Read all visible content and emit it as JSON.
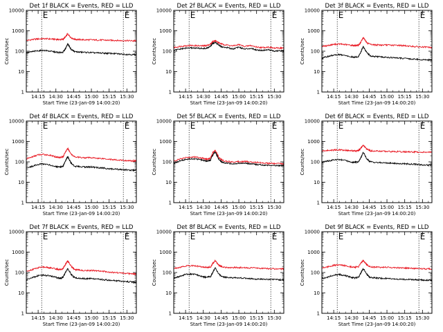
{
  "colors": {
    "events": "#000000",
    "lld": "#e8141e",
    "background": "#ffffff",
    "axes": "#000000"
  },
  "shared": {
    "xlabel": "Start Time (23-Jan-09 14:00:20)",
    "ylabel": "Counts/sec",
    "x_tick_labels": [
      "14:15",
      "14:30",
      "14:45",
      "15:00",
      "15:15",
      "15:30"
    ],
    "y_tick_labels": [
      "1",
      "10",
      "100",
      "1000",
      "10000"
    ],
    "marker_label": "E"
  },
  "chart_data": [
    {
      "type": "line",
      "title": "Det 1f BLACK = Events, RED = LLD",
      "xlim": [
        "14:05",
        "15:38"
      ],
      "ylim": [
        1,
        10000
      ],
      "y_scale": "log",
      "x": [
        "14:05",
        "14:10",
        "14:15",
        "14:20",
        "14:25",
        "14:30",
        "14:33",
        "14:36",
        "14:38",
        "14:40",
        "14:43",
        "14:46",
        "14:50",
        "14:55",
        "15:00",
        "15:05",
        "15:10",
        "15:15",
        "15:20",
        "15:25",
        "15:30",
        "15:35",
        "15:38"
      ],
      "series": [
        {
          "name": "LLD",
          "values": [
            330,
            370,
            400,
            410,
            400,
            380,
            370,
            380,
            480,
            700,
            450,
            380,
            370,
            360,
            360,
            350,
            350,
            340,
            340,
            330,
            330,
            320,
            320
          ]
        },
        {
          "name": "Events",
          "values": [
            80,
            95,
            105,
            110,
            100,
            90,
            85,
            90,
            130,
            230,
            120,
            95,
            90,
            88,
            85,
            82,
            80,
            78,
            76,
            72,
            70,
            68,
            68
          ]
        }
      ]
    },
    {
      "type": "line",
      "title": "Det 2f BLACK = Events, RED = LLD",
      "xlim": [
        "14:05",
        "15:38"
      ],
      "ylim": [
        1,
        10000
      ],
      "y_scale": "log",
      "x": [
        "14:05",
        "14:10",
        "14:15",
        "14:20",
        "14:25",
        "14:30",
        "14:33",
        "14:36",
        "14:38",
        "14:40",
        "14:43",
        "14:46",
        "14:50",
        "14:55",
        "15:00",
        "15:05",
        "15:10",
        "15:15",
        "15:20",
        "15:25",
        "15:30",
        "15:35",
        "15:38"
      ],
      "series": [
        {
          "name": "LLD",
          "values": [
            150,
            170,
            185,
            190,
            185,
            180,
            190,
            220,
            300,
            330,
            260,
            220,
            200,
            180,
            210,
            170,
            190,
            160,
            150,
            160,
            140,
            145,
            140
          ]
        },
        {
          "name": "Events",
          "values": [
            110,
            125,
            140,
            145,
            140,
            135,
            140,
            170,
            240,
            280,
            200,
            160,
            150,
            130,
            160,
            125,
            140,
            115,
            110,
            120,
            100,
            105,
            100
          ]
        }
      ]
    },
    {
      "type": "line",
      "title": "Det 3f BLACK = Events, RED = LLD",
      "xlim": [
        "14:05",
        "15:38"
      ],
      "ylim": [
        1,
        10000
      ],
      "y_scale": "log",
      "x": [
        "14:05",
        "14:10",
        "14:15",
        "14:20",
        "14:25",
        "14:30",
        "14:33",
        "14:36",
        "14:38",
        "14:40",
        "14:43",
        "14:46",
        "14:50",
        "14:55",
        "15:00",
        "15:05",
        "15:10",
        "15:15",
        "15:20",
        "15:25",
        "15:30",
        "15:35",
        "15:38"
      ],
      "series": [
        {
          "name": "LLD",
          "values": [
            170,
            190,
            215,
            225,
            210,
            195,
            190,
            195,
            280,
            480,
            260,
            210,
            205,
            200,
            200,
            195,
            195,
            185,
            175,
            165,
            160,
            155,
            150
          ]
        },
        {
          "name": "Events",
          "values": [
            45,
            55,
            65,
            68,
            60,
            52,
            50,
            55,
            95,
            170,
            85,
            58,
            55,
            52,
            50,
            48,
            46,
            44,
            42,
            40,
            38,
            37,
            36
          ]
        }
      ]
    },
    {
      "type": "line",
      "title": "Det 4f BLACK = Events, RED = LLD",
      "xlim": [
        "14:05",
        "15:38"
      ],
      "ylim": [
        1,
        10000
      ],
      "y_scale": "log",
      "x": [
        "14:05",
        "14:10",
        "14:15",
        "14:20",
        "14:25",
        "14:30",
        "14:33",
        "14:36",
        "14:38",
        "14:40",
        "14:43",
        "14:46",
        "14:50",
        "14:55",
        "15:00",
        "15:05",
        "15:10",
        "15:15",
        "15:20",
        "15:25",
        "15:30",
        "15:35",
        "15:38"
      ],
      "series": [
        {
          "name": "LLD",
          "values": [
            140,
            175,
            220,
            230,
            210,
            175,
            165,
            175,
            300,
            450,
            240,
            175,
            165,
            160,
            160,
            150,
            145,
            135,
            125,
            120,
            115,
            110,
            115
          ]
        },
        {
          "name": "Events",
          "values": [
            50,
            60,
            75,
            80,
            70,
            58,
            54,
            58,
            110,
            180,
            85,
            60,
            58,
            56,
            56,
            52,
            50,
            46,
            44,
            42,
            40,
            38,
            42
          ]
        }
      ]
    },
    {
      "type": "line",
      "title": "Det 5f BLACK = Events, RED = LLD",
      "xlim": [
        "14:05",
        "15:38"
      ],
      "ylim": [
        1,
        10000
      ],
      "y_scale": "log",
      "x": [
        "14:05",
        "14:10",
        "14:15",
        "14:20",
        "14:25",
        "14:30",
        "14:33",
        "14:36",
        "14:38",
        "14:40",
        "14:43",
        "14:46",
        "14:50",
        "14:55",
        "15:00",
        "15:05",
        "15:10",
        "15:15",
        "15:20",
        "15:25",
        "15:30",
        "15:35",
        "15:38"
      ],
      "series": [
        {
          "name": "LLD",
          "values": [
            110,
            135,
            160,
            175,
            170,
            150,
            135,
            150,
            280,
            380,
            170,
            120,
            105,
            100,
            105,
            105,
            100,
            95,
            90,
            85,
            82,
            82,
            80
          ]
        },
        {
          "name": "Events",
          "values": [
            85,
            110,
            130,
            140,
            135,
            120,
            110,
            120,
            220,
            310,
            135,
            95,
            85,
            80,
            85,
            85,
            80,
            75,
            70,
            68,
            66,
            66,
            65
          ]
        }
      ]
    },
    {
      "type": "line",
      "title": "Det 6f BLACK = Events, RED = LLD",
      "xlim": [
        "14:05",
        "15:38"
      ],
      "ylim": [
        1,
        10000
      ],
      "y_scale": "log",
      "x": [
        "14:05",
        "14:10",
        "14:15",
        "14:20",
        "14:25",
        "14:30",
        "14:33",
        "14:36",
        "14:38",
        "14:40",
        "14:43",
        "14:46",
        "14:50",
        "14:55",
        "15:00",
        "15:05",
        "15:10",
        "15:15",
        "15:20",
        "15:25",
        "15:30",
        "15:35",
        "15:38"
      ],
      "series": [
        {
          "name": "LLD",
          "values": [
            340,
            360,
            380,
            390,
            370,
            350,
            340,
            350,
            480,
            650,
            420,
            350,
            340,
            330,
            330,
            320,
            315,
            310,
            305,
            300,
            300,
            295,
            295
          ]
        },
        {
          "name": "Events",
          "values": [
            95,
            110,
            125,
            130,
            115,
            100,
            95,
            100,
            160,
            300,
            140,
            100,
            95,
            90,
            88,
            85,
            82,
            80,
            78,
            75,
            72,
            70,
            70
          ]
        }
      ]
    },
    {
      "type": "line",
      "title": "Det 7f BLACK = Events, RED = LLD",
      "xlim": [
        "14:05",
        "15:38"
      ],
      "ylim": [
        1,
        10000
      ],
      "y_scale": "log",
      "x": [
        "14:05",
        "14:10",
        "14:15",
        "14:20",
        "14:25",
        "14:30",
        "14:33",
        "14:36",
        "14:38",
        "14:40",
        "14:43",
        "14:46",
        "14:50",
        "14:55",
        "15:00",
        "15:05",
        "15:10",
        "15:15",
        "15:20",
        "15:25",
        "15:30",
        "15:35",
        "15:38"
      ],
      "series": [
        {
          "name": "LLD",
          "values": [
            110,
            140,
            170,
            185,
            170,
            150,
            140,
            150,
            250,
            380,
            200,
            140,
            130,
            125,
            125,
            120,
            115,
            105,
            100,
            95,
            90,
            85,
            85
          ]
        },
        {
          "name": "Events",
          "values": [
            45,
            55,
            70,
            75,
            68,
            58,
            52,
            58,
            100,
            160,
            80,
            55,
            52,
            50,
            50,
            47,
            45,
            42,
            40,
            38,
            36,
            34,
            34
          ]
        }
      ]
    },
    {
      "type": "line",
      "title": "Det 8f BLACK = Events, RED = LLD",
      "xlim": [
        "14:05",
        "15:38"
      ],
      "ylim": [
        1,
        10000
      ],
      "y_scale": "log",
      "x": [
        "14:05",
        "14:10",
        "14:15",
        "14:20",
        "14:25",
        "14:30",
        "14:33",
        "14:36",
        "14:38",
        "14:40",
        "14:43",
        "14:46",
        "14:50",
        "14:55",
        "15:00",
        "15:05",
        "15:10",
        "15:15",
        "15:20",
        "15:25",
        "15:30",
        "15:35",
        "15:38"
      ],
      "series": [
        {
          "name": "LLD",
          "values": [
            160,
            180,
            210,
            220,
            205,
            185,
            175,
            185,
            280,
            380,
            230,
            185,
            180,
            175,
            175,
            170,
            170,
            165,
            160,
            155,
            150,
            150,
            150
          ]
        },
        {
          "name": "Events",
          "values": [
            55,
            65,
            80,
            85,
            75,
            62,
            58,
            62,
            100,
            170,
            85,
            60,
            58,
            55,
            55,
            52,
            50,
            48,
            47,
            46,
            45,
            44,
            44
          ]
        }
      ]
    },
    {
      "type": "line",
      "title": "Det 9f BLACK = Events, RED = LLD",
      "xlim": [
        "14:05",
        "15:38"
      ],
      "ylim": [
        1,
        10000
      ],
      "y_scale": "log",
      "x": [
        "14:05",
        "14:10",
        "14:15",
        "14:20",
        "14:25",
        "14:30",
        "14:33",
        "14:36",
        "14:38",
        "14:40",
        "14:43",
        "14:46",
        "14:50",
        "14:55",
        "15:00",
        "15:05",
        "15:10",
        "15:15",
        "15:20",
        "15:25",
        "15:30",
        "15:35",
        "15:38"
      ],
      "series": [
        {
          "name": "LLD",
          "values": [
            170,
            190,
            225,
            235,
            215,
            190,
            180,
            190,
            290,
            400,
            240,
            190,
            185,
            180,
            180,
            175,
            170,
            165,
            160,
            155,
            150,
            150,
            150
          ]
        },
        {
          "name": "Events",
          "values": [
            50,
            60,
            75,
            80,
            70,
            58,
            54,
            58,
            95,
            160,
            80,
            57,
            55,
            52,
            52,
            50,
            48,
            46,
            45,
            44,
            43,
            42,
            42
          ]
        }
      ]
    }
  ]
}
